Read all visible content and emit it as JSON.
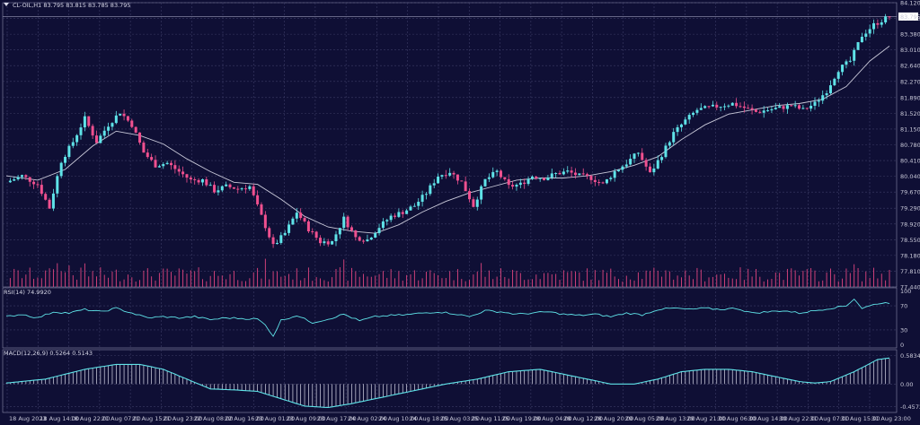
{
  "header": {
    "symbol_line": "CL-OIL,H1  83.795 83.815 83.785 83.795",
    "rsi_label": "RSI(14) 74.9920",
    "macd_label": "MACD(12,26,9) 0.5264 0.5143"
  },
  "colors": {
    "background": "#0f0f35",
    "bull": "#5fe3e8",
    "bear": "#f0508f",
    "ma": "#c9c9d9",
    "rsi": "#5fe3e8",
    "macd_line": "#5fe3e8",
    "macd_hist": "#d9d9e9",
    "volume": "#e0457f",
    "grid": "#3c3c66"
  },
  "chart_data": [
    {
      "type": "candlestick",
      "name": "price",
      "ylim": [
        77.44,
        84.12
      ],
      "y_ticks": [
        "84.120",
        "83.750",
        "83.380",
        "83.010",
        "82.640",
        "82.270",
        "81.890",
        "81.520",
        "81.150",
        "80.780",
        "80.410",
        "80.040",
        "79.670",
        "79.290",
        "78.920",
        "78.550",
        "78.180",
        "77.810",
        "77.440"
      ],
      "last_price_label": "83.795",
      "x_ticks": [
        "18 Aug 2023",
        "18 Aug 14:00",
        "18 Aug 22:00",
        "21 Aug 07:00",
        "21 Aug 15:00",
        "21 Aug 23:00",
        "22 Aug 08:00",
        "22 Aug 16:00",
        "23 Aug 01:00",
        "23 Aug 09:00",
        "23 Aug 17:00",
        "24 Aug 02:00",
        "24 Aug 10:00",
        "24 Aug 18:00",
        "25 Aug 03:00",
        "25 Aug 11:00",
        "25 Aug 19:00",
        "28 Aug 04:00",
        "28 Aug 12:00",
        "28 Aug 20:00",
        "29 Aug 05:00",
        "29 Aug 13:00",
        "29 Aug 21:00",
        "30 Aug 06:00",
        "30 Aug 14:00",
        "30 Aug 22:00",
        "31 Aug 07:00",
        "31 Aug 15:00",
        "31 Aug 23:00"
      ],
      "close_path": [
        [
          0,
          79.9
        ],
        [
          4,
          80.05
        ],
        [
          8,
          79.85
        ],
        [
          11,
          79.3
        ],
        [
          14,
          80.4
        ],
        [
          17,
          80.85
        ],
        [
          20,
          81.4
        ],
        [
          23,
          80.85
        ],
        [
          26,
          81.25
        ],
        [
          29,
          81.55
        ],
        [
          32,
          81.25
        ],
        [
          35,
          80.6
        ],
        [
          38,
          80.3
        ],
        [
          41,
          80.35
        ],
        [
          44,
          80.15
        ],
        [
          47,
          79.95
        ],
        [
          50,
          79.95
        ],
        [
          53,
          79.7
        ],
        [
          56,
          79.8
        ],
        [
          59,
          79.75
        ],
        [
          62,
          79.8
        ],
        [
          65,
          79.1
        ],
        [
          68,
          78.4
        ],
        [
          71,
          78.7
        ],
        [
          74,
          79.2
        ],
        [
          77,
          78.8
        ],
        [
          80,
          78.5
        ],
        [
          83,
          78.5
        ],
        [
          86,
          79.05
        ],
        [
          89,
          78.6
        ],
        [
          92,
          78.55
        ],
        [
          95,
          78.85
        ],
        [
          98,
          79.1
        ],
        [
          101,
          79.2
        ],
        [
          104,
          79.35
        ],
        [
          107,
          79.65
        ],
        [
          110,
          80.05
        ],
        [
          113,
          80.15
        ],
        [
          116,
          79.9
        ],
        [
          119,
          79.35
        ],
        [
          122,
          79.95
        ],
        [
          125,
          80.15
        ],
        [
          128,
          79.8
        ],
        [
          131,
          79.85
        ],
        [
          134,
          80.05
        ],
        [
          137,
          80.0
        ],
        [
          140,
          80.1
        ],
        [
          143,
          80.15
        ],
        [
          146,
          80.05
        ],
        [
          149,
          80.0
        ],
        [
          152,
          79.85
        ],
        [
          155,
          80.15
        ],
        [
          158,
          80.35
        ],
        [
          161,
          80.6
        ],
        [
          164,
          80.1
        ],
        [
          167,
          80.55
        ],
        [
          170,
          81.05
        ],
        [
          173,
          81.35
        ],
        [
          176,
          81.6
        ],
        [
          179,
          81.65
        ],
        [
          182,
          81.7
        ],
        [
          185,
          81.75
        ],
        [
          188,
          81.65
        ],
        [
          191,
          81.55
        ],
        [
          194,
          81.6
        ],
        [
          197,
          81.65
        ],
        [
          200,
          81.7
        ],
        [
          203,
          81.6
        ],
        [
          206,
          81.75
        ],
        [
          209,
          82.05
        ],
        [
          212,
          82.55
        ],
        [
          215,
          82.75
        ],
        [
          218,
          83.35
        ],
        [
          221,
          83.6
        ],
        [
          224,
          83.75
        ],
        [
          225,
          83.795
        ]
      ],
      "moving_average_path": [
        [
          0,
          80.05
        ],
        [
          8,
          79.95
        ],
        [
          15,
          80.2
        ],
        [
          22,
          80.75
        ],
        [
          28,
          81.1
        ],
        [
          34,
          81.0
        ],
        [
          40,
          80.8
        ],
        [
          46,
          80.45
        ],
        [
          52,
          80.15
        ],
        [
          58,
          79.9
        ],
        [
          64,
          79.85
        ],
        [
          70,
          79.5
        ],
        [
          76,
          79.1
        ],
        [
          82,
          78.85
        ],
        [
          88,
          78.75
        ],
        [
          94,
          78.7
        ],
        [
          100,
          78.9
        ],
        [
          106,
          79.2
        ],
        [
          112,
          79.45
        ],
        [
          118,
          79.65
        ],
        [
          124,
          79.8
        ],
        [
          130,
          79.95
        ],
        [
          136,
          80.0
        ],
        [
          142,
          80.0
        ],
        [
          148,
          80.05
        ],
        [
          154,
          80.15
        ],
        [
          160,
          80.3
        ],
        [
          166,
          80.5
        ],
        [
          172,
          80.9
        ],
        [
          178,
          81.25
        ],
        [
          184,
          81.5
        ],
        [
          190,
          81.6
        ],
        [
          196,
          81.7
        ],
        [
          202,
          81.75
        ],
        [
          208,
          81.85
        ],
        [
          214,
          82.15
        ],
        [
          220,
          82.75
        ],
        [
          225,
          83.1
        ]
      ]
    },
    {
      "type": "line",
      "name": "RSI(14)",
      "ylim": [
        0,
        100
      ],
      "y_ticks": [
        "100",
        "70",
        "30",
        "0"
      ],
      "values_path": [
        [
          0,
          52
        ],
        [
          4,
          56
        ],
        [
          8,
          50
        ],
        [
          12,
          60
        ],
        [
          16,
          58
        ],
        [
          20,
          64
        ],
        [
          24,
          60
        ],
        [
          28,
          66
        ],
        [
          32,
          58
        ],
        [
          36,
          50
        ],
        [
          40,
          52
        ],
        [
          44,
          50
        ],
        [
          48,
          52
        ],
        [
          52,
          47
        ],
        [
          56,
          50
        ],
        [
          60,
          49
        ],
        [
          64,
          48
        ],
        [
          66,
          38
        ],
        [
          68,
          20
        ],
        [
          70,
          46
        ],
        [
          74,
          54
        ],
        [
          78,
          42
        ],
        [
          82,
          48
        ],
        [
          86,
          56
        ],
        [
          90,
          45
        ],
        [
          94,
          52
        ],
        [
          98,
          54
        ],
        [
          102,
          55
        ],
        [
          106,
          58
        ],
        [
          110,
          60
        ],
        [
          114,
          57
        ],
        [
          118,
          52
        ],
        [
          122,
          62
        ],
        [
          126,
          60
        ],
        [
          130,
          56
        ],
        [
          134,
          58
        ],
        [
          138,
          60
        ],
        [
          142,
          56
        ],
        [
          146,
          54
        ],
        [
          150,
          56
        ],
        [
          154,
          52
        ],
        [
          158,
          58
        ],
        [
          162,
          55
        ],
        [
          166,
          64
        ],
        [
          170,
          66
        ],
        [
          174,
          64
        ],
        [
          178,
          66
        ],
        [
          182,
          64
        ],
        [
          186,
          66
        ],
        [
          190,
          58
        ],
        [
          194,
          60
        ],
        [
          198,
          62
        ],
        [
          202,
          58
        ],
        [
          206,
          62
        ],
        [
          210,
          66
        ],
        [
          214,
          70
        ],
        [
          216,
          82
        ],
        [
          218,
          66
        ],
        [
          222,
          74
        ],
        [
          225,
          75
        ]
      ]
    },
    {
      "type": "line+bar",
      "name": "MACD(12,26,9)",
      "y_ticks": [
        "0.5834",
        "0.00",
        "-0.4572"
      ],
      "ylim": [
        -0.58,
        0.7
      ],
      "macd_path": [
        [
          0,
          0.02
        ],
        [
          10,
          0.1
        ],
        [
          20,
          0.3
        ],
        [
          28,
          0.4
        ],
        [
          34,
          0.4
        ],
        [
          40,
          0.3
        ],
        [
          46,
          0.1
        ],
        [
          52,
          -0.1
        ],
        [
          58,
          -0.12
        ],
        [
          64,
          -0.15
        ],
        [
          70,
          -0.3
        ],
        [
          76,
          -0.45
        ],
        [
          82,
          -0.48
        ],
        [
          88,
          -0.4
        ],
        [
          94,
          -0.3
        ],
        [
          100,
          -0.2
        ],
        [
          106,
          -0.1
        ],
        [
          112,
          0.0
        ],
        [
          120,
          0.1
        ],
        [
          128,
          0.25
        ],
        [
          136,
          0.3
        ],
        [
          142,
          0.2
        ],
        [
          148,
          0.1
        ],
        [
          154,
          0.0
        ],
        [
          160,
          0.0
        ],
        [
          166,
          0.1
        ],
        [
          172,
          0.25
        ],
        [
          178,
          0.3
        ],
        [
          184,
          0.3
        ],
        [
          190,
          0.25
        ],
        [
          196,
          0.15
        ],
        [
          202,
          0.05
        ],
        [
          206,
          0.02
        ],
        [
          210,
          0.05
        ],
        [
          216,
          0.25
        ],
        [
          222,
          0.5
        ],
        [
          225,
          0.53
        ]
      ]
    }
  ]
}
